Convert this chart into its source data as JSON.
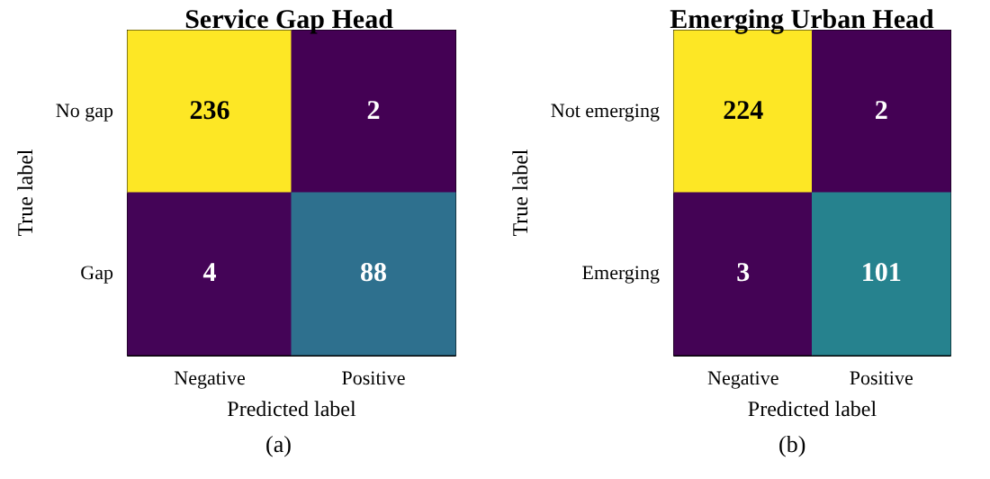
{
  "chart_data": [
    {
      "type": "heatmap",
      "title": "Service Gap Head",
      "xlabel": "Predicted label",
      "ylabel": "True label",
      "categories": [
        "Negative",
        "Positive"
      ],
      "y_categories": [
        "No gap",
        "Gap"
      ],
      "cells": [
        [
          236,
          2
        ],
        [
          4,
          88
        ]
      ],
      "data_labels": true,
      "annotations": [
        "(a)"
      ]
    },
    {
      "type": "heatmap",
      "title": "Emerging Urban Head",
      "xlabel": "Predicted label",
      "ylabel": "True label",
      "categories": [
        "Negative",
        "Positive"
      ],
      "y_categories": [
        "Not emerging",
        "Emerging"
      ],
      "cells": [
        [
          224,
          2
        ],
        [
          3,
          101
        ]
      ],
      "data_labels": true,
      "annotations": [
        "(b)"
      ]
    }
  ]
}
